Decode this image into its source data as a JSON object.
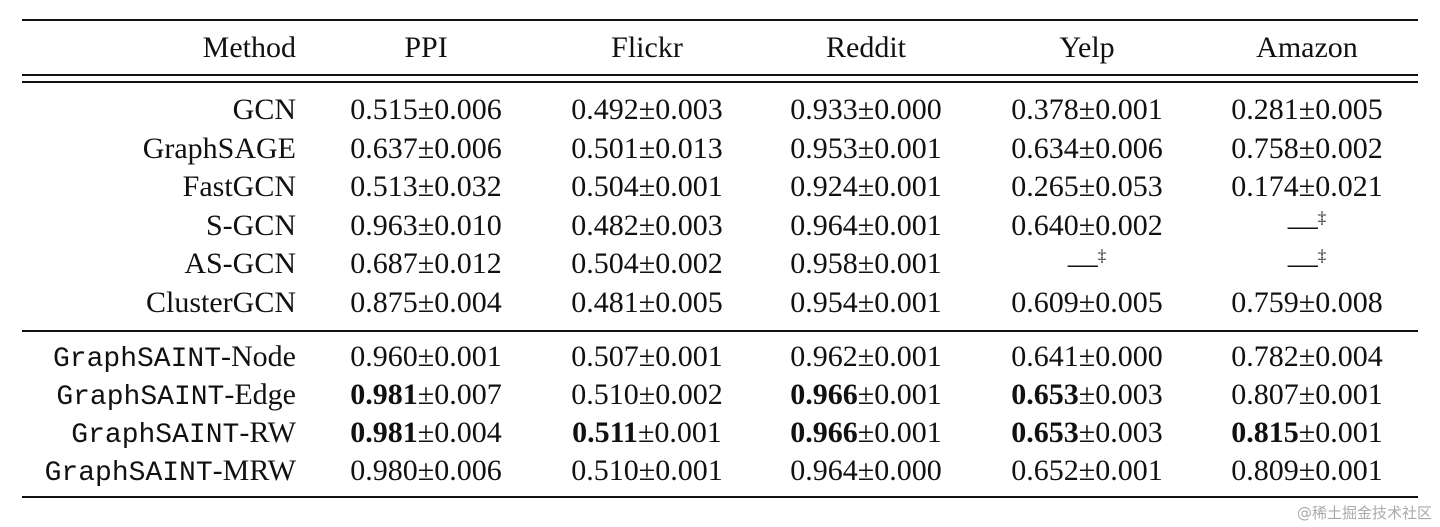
{
  "table": {
    "header": [
      "Method",
      "PPI",
      "Flickr",
      "Reddit",
      "Yelp",
      "Amazon"
    ],
    "groups": [
      {
        "rows": [
          {
            "method": {
              "text": "GCN"
            },
            "cells": [
              {
                "text": "0.515±0.006"
              },
              {
                "text": "0.492±0.003"
              },
              {
                "text": "0.933±0.000"
              },
              {
                "text": "0.378±0.001"
              },
              {
                "text": "0.281±0.005"
              }
            ]
          },
          {
            "method": {
              "text": "GraphSAGE"
            },
            "cells": [
              {
                "text": "0.637±0.006"
              },
              {
                "text": "0.501±0.013"
              },
              {
                "text": "0.953±0.001"
              },
              {
                "text": "0.634±0.006"
              },
              {
                "text": "0.758±0.002"
              }
            ]
          },
          {
            "method": {
              "text": "FastGCN"
            },
            "cells": [
              {
                "text": "0.513±0.032"
              },
              {
                "text": "0.504±0.001"
              },
              {
                "text": "0.924±0.001"
              },
              {
                "text": "0.265±0.053"
              },
              {
                "text": "0.174±0.021"
              }
            ]
          },
          {
            "method": {
              "text": "S-GCN"
            },
            "cells": [
              {
                "text": "0.963±0.010"
              },
              {
                "text": "0.482±0.003"
              },
              {
                "text": "0.964±0.001"
              },
              {
                "text": "0.640±0.002"
              },
              {
                "text": "—",
                "sup": "‡"
              }
            ]
          },
          {
            "method": {
              "text": "AS-GCN"
            },
            "cells": [
              {
                "text": "0.687±0.012"
              },
              {
                "text": "0.504±0.002"
              },
              {
                "text": "0.958±0.001"
              },
              {
                "text": "—",
                "sup": "‡"
              },
              {
                "text": "—",
                "sup": "‡"
              }
            ]
          },
          {
            "method": {
              "text": "ClusterGCN"
            },
            "cells": [
              {
                "text": "0.875±0.004"
              },
              {
                "text": "0.481±0.005"
              },
              {
                "text": "0.954±0.001"
              },
              {
                "text": "0.609±0.005"
              },
              {
                "text": "0.759±0.008"
              }
            ]
          }
        ]
      },
      {
        "rows": [
          {
            "method": {
              "mono": "GraphSAINT",
              "text": "-Node"
            },
            "cells": [
              {
                "text": "0.960±0.001"
              },
              {
                "text": "0.507±0.001"
              },
              {
                "text": "0.962±0.001"
              },
              {
                "text": "0.641±0.000"
              },
              {
                "text": "0.782±0.004"
              }
            ]
          },
          {
            "method": {
              "mono": "GraphSAINT",
              "text": "-Edge"
            },
            "cells": [
              {
                "bold": "0.981",
                "text": "±0.007"
              },
              {
                "text": "0.510±0.002"
              },
              {
                "bold": "0.966",
                "text": "±0.001"
              },
              {
                "bold": "0.653",
                "text": "±0.003"
              },
              {
                "text": "0.807±0.001"
              }
            ]
          },
          {
            "method": {
              "mono": "GraphSAINT",
              "text": "-RW"
            },
            "cells": [
              {
                "bold": "0.981",
                "text": "±0.004"
              },
              {
                "bold": "0.511",
                "text": "±0.001"
              },
              {
                "bold": "0.966",
                "text": "±0.001"
              },
              {
                "bold": "0.653",
                "text": "±0.003"
              },
              {
                "bold": "0.815",
                "text": "±0.001"
              }
            ]
          },
          {
            "method": {
              "mono": "GraphSAINT",
              "text": "-MRW"
            },
            "cells": [
              {
                "text": "0.980±0.006"
              },
              {
                "text": "0.510±0.001"
              },
              {
                "text": "0.964±0.000"
              },
              {
                "text": "0.652±0.001"
              },
              {
                "text": "0.809±0.001"
              }
            ]
          }
        ]
      }
    ]
  },
  "watermark": "@稀土掘金技术社区"
}
